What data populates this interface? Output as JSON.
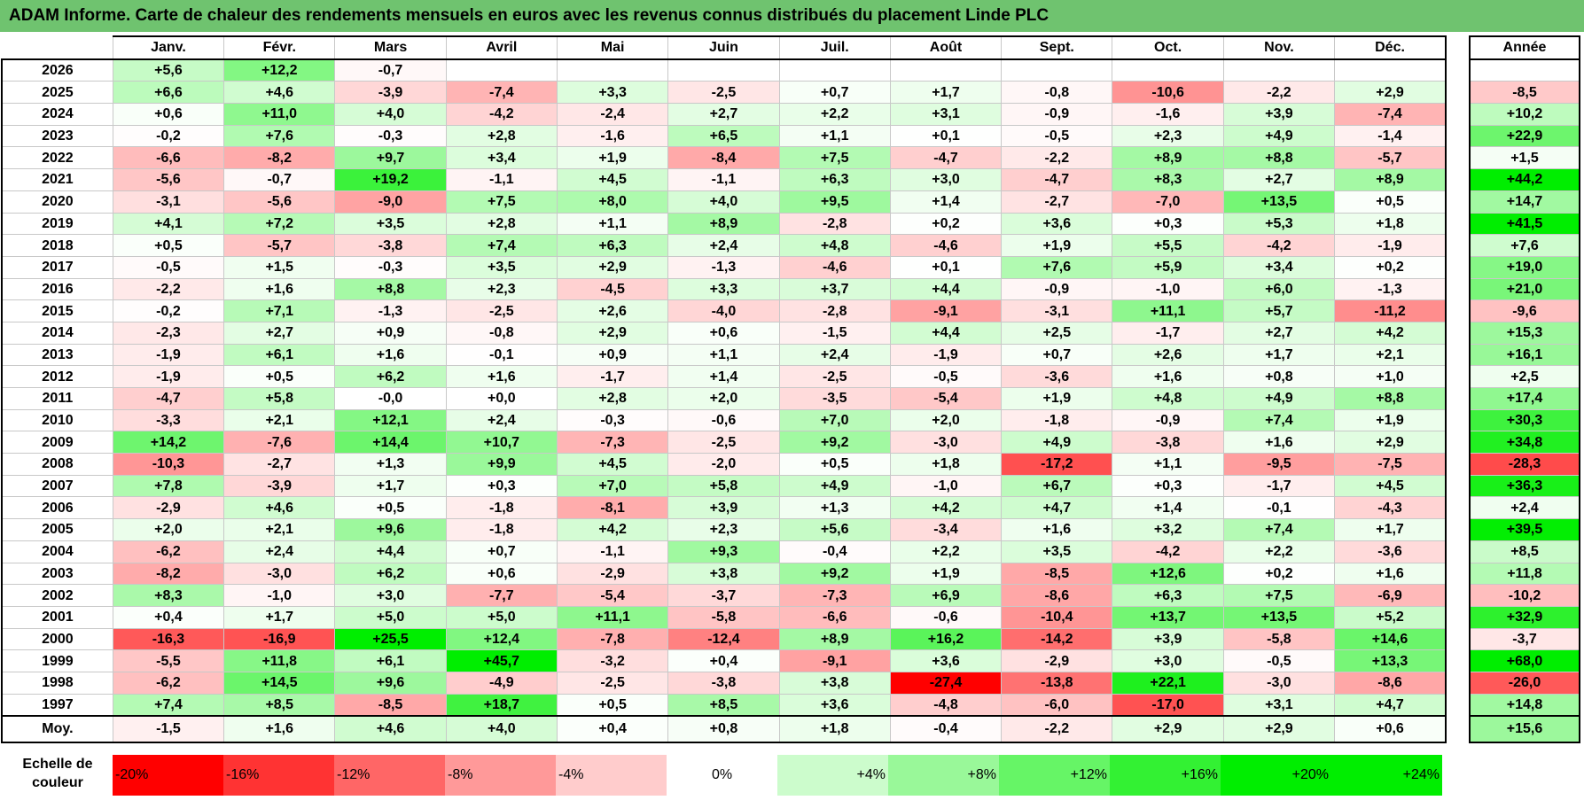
{
  "title": "ADAM Informe. Carte de chaleur des rendements mensuels en euros avec les revenus connus distribués du placement Linde PLC",
  "chart_data": {
    "type": "heatmap",
    "title": "ADAM Informe. Carte de chaleur des rendements mensuels en euros avec les revenus connus distribués du placement Linde PLC",
    "columns": [
      "Janv.",
      "Févr.",
      "Mars",
      "Avril",
      "Mai",
      "Juin",
      "Juil.",
      "Août",
      "Sept.",
      "Oct.",
      "Nov.",
      "Déc."
    ],
    "year_column_label": "Année",
    "rows": [
      {
        "year": "2026",
        "values": [
          "+5,6",
          "+12,2",
          "-0,7",
          "",
          "",
          "",
          "",
          "",
          "",
          "",
          "",
          ""
        ],
        "annual": ""
      },
      {
        "year": "2025",
        "values": [
          "+6,6",
          "+4,6",
          "-3,9",
          "-7,4",
          "+3,3",
          "-2,5",
          "+0,7",
          "+1,7",
          "-0,8",
          "-10,6",
          "-2,2",
          "+2,9"
        ],
        "annual": "-8,5"
      },
      {
        "year": "2024",
        "values": [
          "+0,6",
          "+11,0",
          "+4,0",
          "-4,2",
          "-2,4",
          "+2,7",
          "+2,2",
          "+3,1",
          "-0,9",
          "-1,6",
          "+3,9",
          "-7,4"
        ],
        "annual": "+10,2"
      },
      {
        "year": "2023",
        "values": [
          "-0,2",
          "+7,6",
          "-0,3",
          "+2,8",
          "-1,6",
          "+6,5",
          "+1,1",
          "+0,1",
          "-0,5",
          "+2,3",
          "+4,9",
          "-1,4"
        ],
        "annual": "+22,9"
      },
      {
        "year": "2022",
        "values": [
          "-6,6",
          "-8,2",
          "+9,7",
          "+3,4",
          "+1,9",
          "-8,4",
          "+7,5",
          "-4,7",
          "-2,2",
          "+8,9",
          "+8,8",
          "-5,7"
        ],
        "annual": "+1,5"
      },
      {
        "year": "2021",
        "values": [
          "-5,6",
          "-0,7",
          "+19,2",
          "-1,1",
          "+4,5",
          "-1,1",
          "+6,3",
          "+3,0",
          "-4,7",
          "+8,3",
          "+2,7",
          "+8,9"
        ],
        "annual": "+44,2"
      },
      {
        "year": "2020",
        "values": [
          "-3,1",
          "-5,6",
          "-9,0",
          "+7,5",
          "+8,0",
          "+4,0",
          "+9,5",
          "+1,4",
          "-2,7",
          "-7,0",
          "+13,5",
          "+0,5"
        ],
        "annual": "+14,7"
      },
      {
        "year": "2019",
        "values": [
          "+4,1",
          "+7,2",
          "+3,5",
          "+2,8",
          "+1,1",
          "+8,9",
          "-2,8",
          "+0,2",
          "+3,6",
          "+0,3",
          "+5,3",
          "+1,8"
        ],
        "annual": "+41,5"
      },
      {
        "year": "2018",
        "values": [
          "+0,5",
          "-5,7",
          "-3,8",
          "+7,4",
          "+6,3",
          "+2,4",
          "+4,8",
          "-4,6",
          "+1,9",
          "+5,5",
          "-4,2",
          "-1,9"
        ],
        "annual": "+7,6"
      },
      {
        "year": "2017",
        "values": [
          "-0,5",
          "+1,5",
          "-0,3",
          "+3,5",
          "+2,9",
          "-1,3",
          "-4,6",
          "+0,1",
          "+7,6",
          "+5,9",
          "+3,4",
          "+0,2"
        ],
        "annual": "+19,0"
      },
      {
        "year": "2016",
        "values": [
          "-2,2",
          "+1,6",
          "+8,8",
          "+2,3",
          "-4,5",
          "+3,3",
          "+3,7",
          "+4,4",
          "-0,9",
          "-1,0",
          "+6,0",
          "-1,3"
        ],
        "annual": "+21,0"
      },
      {
        "year": "2015",
        "values": [
          "-0,2",
          "+7,1",
          "-1,3",
          "-2,5",
          "+2,6",
          "-4,0",
          "-2,8",
          "-9,1",
          "-3,1",
          "+11,1",
          "+5,7",
          "-11,2"
        ],
        "annual": "-9,6"
      },
      {
        "year": "2014",
        "values": [
          "-2,3",
          "+2,7",
          "+0,9",
          "-0,8",
          "+2,9",
          "+0,6",
          "-1,5",
          "+4,4",
          "+2,5",
          "-1,7",
          "+2,7",
          "+4,2"
        ],
        "annual": "+15,3"
      },
      {
        "year": "2013",
        "values": [
          "-1,9",
          "+6,1",
          "+1,6",
          "-0,1",
          "+0,9",
          "+1,1",
          "+2,4",
          "-1,9",
          "+0,7",
          "+2,6",
          "+1,7",
          "+2,1"
        ],
        "annual": "+16,1"
      },
      {
        "year": "2012",
        "values": [
          "-1,9",
          "+0,5",
          "+6,2",
          "+1,6",
          "-1,7",
          "+1,4",
          "-2,5",
          "-0,5",
          "-3,6",
          "+1,6",
          "+0,8",
          "+1,0"
        ],
        "annual": "+2,5"
      },
      {
        "year": "2011",
        "values": [
          "-4,7",
          "+5,8",
          "-0,0",
          "+0,0",
          "+2,8",
          "+2,0",
          "-3,5",
          "-5,4",
          "+1,9",
          "+4,8",
          "+4,9",
          "+8,8"
        ],
        "annual": "+17,4"
      },
      {
        "year": "2010",
        "values": [
          "-3,3",
          "+2,1",
          "+12,1",
          "+2,4",
          "-0,3",
          "-0,6",
          "+7,0",
          "+2,0",
          "-1,8",
          "-0,9",
          "+7,4",
          "+1,9"
        ],
        "annual": "+30,3"
      },
      {
        "year": "2009",
        "values": [
          "+14,2",
          "-7,6",
          "+14,4",
          "+10,7",
          "-7,3",
          "-2,5",
          "+9,2",
          "-3,0",
          "+4,9",
          "-3,8",
          "+1,6",
          "+2,9"
        ],
        "annual": "+34,8"
      },
      {
        "year": "2008",
        "values": [
          "-10,3",
          "-2,7",
          "+1,3",
          "+9,9",
          "+4,5",
          "-2,0",
          "+0,5",
          "+1,8",
          "-17,2",
          "+1,1",
          "-9,5",
          "-7,5"
        ],
        "annual": "-28,3"
      },
      {
        "year": "2007",
        "values": [
          "+7,8",
          "-3,9",
          "+1,7",
          "+0,3",
          "+7,0",
          "+5,8",
          "+4,9",
          "-1,0",
          "+6,7",
          "+0,3",
          "-1,7",
          "+4,5"
        ],
        "annual": "+36,3"
      },
      {
        "year": "2006",
        "values": [
          "-2,9",
          "+4,6",
          "+0,5",
          "-1,8",
          "-8,1",
          "+3,9",
          "+1,3",
          "+4,2",
          "+4,7",
          "+1,4",
          "-0,1",
          "-4,3"
        ],
        "annual": "+2,4"
      },
      {
        "year": "2005",
        "values": [
          "+2,0",
          "+2,1",
          "+9,6",
          "-1,8",
          "+4,2",
          "+2,3",
          "+5,6",
          "-3,4",
          "+1,6",
          "+3,2",
          "+7,4",
          "+1,7"
        ],
        "annual": "+39,5"
      },
      {
        "year": "2004",
        "values": [
          "-6,2",
          "+2,4",
          "+4,4",
          "+0,7",
          "-1,1",
          "+9,3",
          "-0,4",
          "+2,2",
          "+3,5",
          "-4,2",
          "+2,2",
          "-3,6"
        ],
        "annual": "+8,5"
      },
      {
        "year": "2003",
        "values": [
          "-8,2",
          "-3,0",
          "+6,2",
          "+0,6",
          "-2,9",
          "+3,8",
          "+9,2",
          "+1,9",
          "-8,5",
          "+12,6",
          "+0,2",
          "+1,6"
        ],
        "annual": "+11,8"
      },
      {
        "year": "2002",
        "values": [
          "+8,3",
          "-1,0",
          "+3,0",
          "-7,7",
          "-5,4",
          "-3,7",
          "-7,3",
          "+6,9",
          "-8,6",
          "+6,3",
          "+7,5",
          "-6,9"
        ],
        "annual": "-10,2"
      },
      {
        "year": "2001",
        "values": [
          "+0,4",
          "+1,7",
          "+5,0",
          "+5,0",
          "+11,1",
          "-5,8",
          "-6,6",
          "-0,6",
          "-10,4",
          "+13,7",
          "+13,5",
          "+5,2"
        ],
        "annual": "+32,9"
      },
      {
        "year": "2000",
        "values": [
          "-16,3",
          "-16,9",
          "+25,5",
          "+12,4",
          "-7,8",
          "-12,4",
          "+8,9",
          "+16,2",
          "-14,2",
          "+3,9",
          "-5,8",
          "+14,6"
        ],
        "annual": "-3,7"
      },
      {
        "year": "1999",
        "values": [
          "-5,5",
          "+11,8",
          "+6,1",
          "+45,7",
          "-3,2",
          "+0,4",
          "-9,1",
          "+3,6",
          "-2,9",
          "+3,0",
          "-0,5",
          "+13,3"
        ],
        "annual": "+68,0"
      },
      {
        "year": "1998",
        "values": [
          "-6,2",
          "+14,5",
          "+9,6",
          "-4,9",
          "-2,5",
          "-3,8",
          "+3,8",
          "-27,4",
          "-13,8",
          "+22,1",
          "-3,0",
          "-8,6"
        ],
        "annual": "-26,0"
      },
      {
        "year": "1997",
        "values": [
          "+7,4",
          "+8,5",
          "-8,5",
          "+18,7",
          "+0,5",
          "+8,5",
          "+3,6",
          "-4,8",
          "-6,0",
          "-17,0",
          "+3,1",
          "+4,7"
        ],
        "annual": "+14,8"
      }
    ],
    "average": {
      "label": "Moy.",
      "values": [
        "-1,5",
        "+1,6",
        "+4,6",
        "+4,0",
        "+0,4",
        "+0,8",
        "+1,8",
        "-0,4",
        "-2,2",
        "+2,9",
        "+2,9",
        "+0,6"
      ],
      "annual": "+15,6"
    },
    "scale": {
      "label_line1": "Echelle de",
      "label_line2": "couleur",
      "stops": [
        "-20%",
        "-16%",
        "-12%",
        "-8%",
        "-4%",
        "0%",
        "+4%",
        "+8%",
        "+12%",
        "+16%",
        "+20%",
        "+24%"
      ]
    },
    "colors": {
      "negative": "#ff0000",
      "positive": "#00ee00",
      "neutral": "#ffffff",
      "title_bg": "#6fc36f"
    }
  }
}
